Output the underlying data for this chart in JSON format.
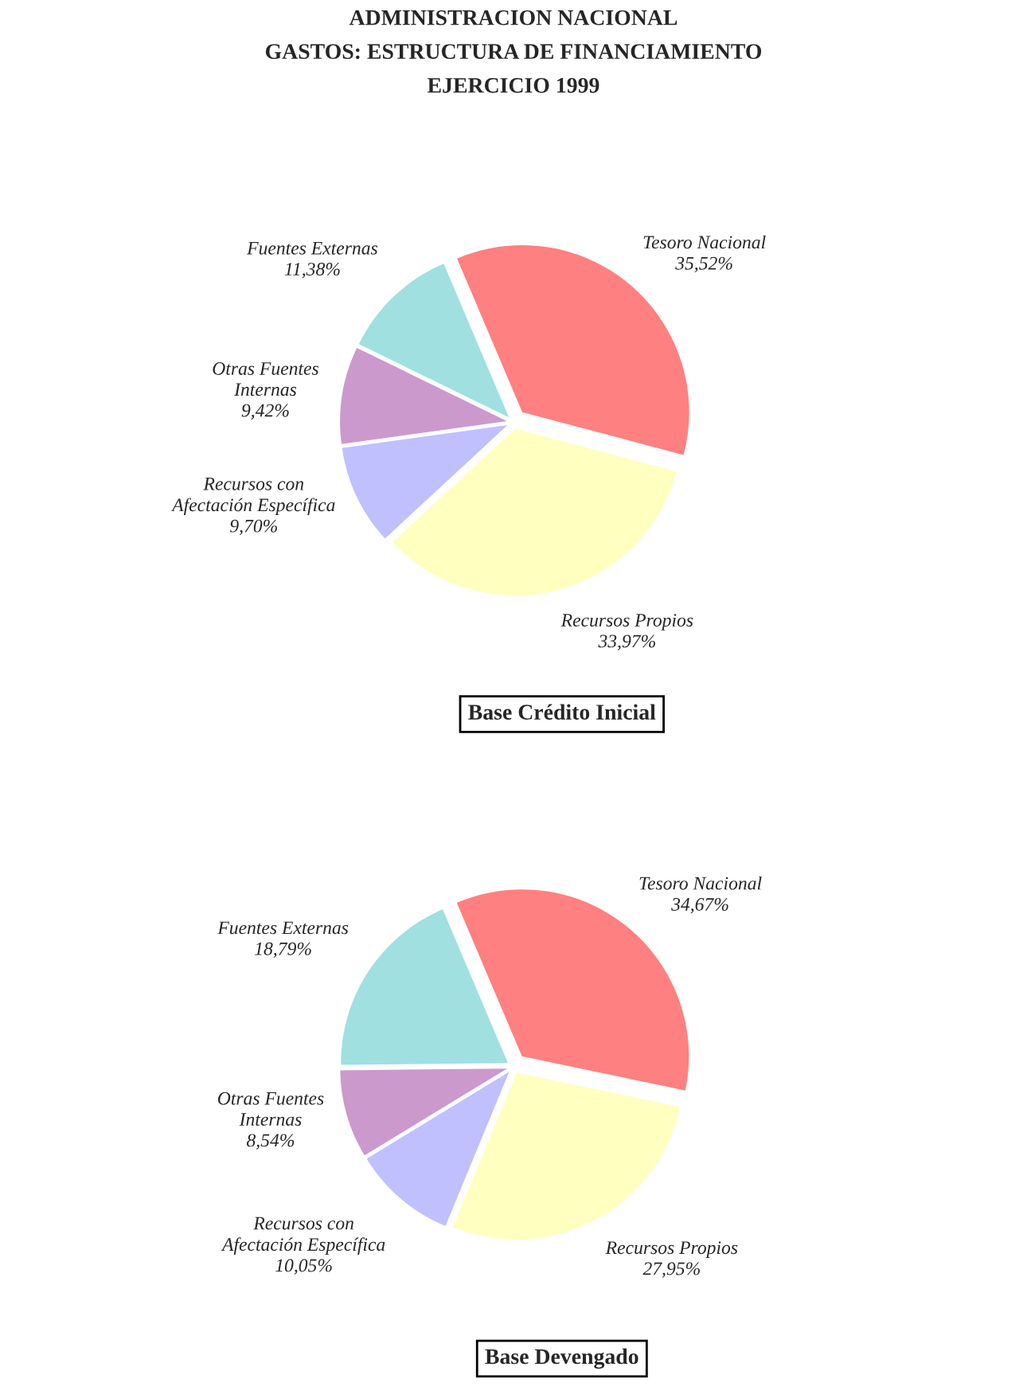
{
  "chart_data": [
    {
      "type": "pie",
      "title": "ADMINISTRACION NACIONAL\nGASTOS: ESTRUCTURA DE FINANCIAMIENTO\nEJERCICIO 1999",
      "subtitle": "Base Crédito Inicial",
      "categories": [
        "Tesoro Nacional",
        "Recursos Propios",
        "Recursos con\nAfectación Específica",
        "Otras Fuentes\nInternas",
        "Fuentes Externas"
      ],
      "values": [
        35.52,
        33.97,
        9.7,
        9.42,
        11.38
      ],
      "value_labels": [
        "35,52%",
        "33,97%",
        "9,70%",
        "9,42%",
        "11,38%"
      ],
      "colors": [
        "#ff8080",
        "#ffffc0",
        "#c0c0ff",
        "#cc99cc",
        "#a0e0e0"
      ]
    },
    {
      "type": "pie",
      "subtitle": "Base Devengado",
      "categories": [
        "Tesoro Nacional",
        "Recursos Propios",
        "Recursos con\nAfectación Específica",
        "Otras Fuentes\nInternas",
        "Fuentes Externas"
      ],
      "values": [
        34.67,
        27.95,
        10.05,
        8.54,
        18.79
      ],
      "value_labels": [
        "34,67%",
        "27,95%",
        "10,05%",
        "8,54%",
        "18,79%"
      ],
      "colors": [
        "#ff8080",
        "#ffffc0",
        "#c0c0ff",
        "#cc99cc",
        "#a0e0e0"
      ]
    }
  ]
}
